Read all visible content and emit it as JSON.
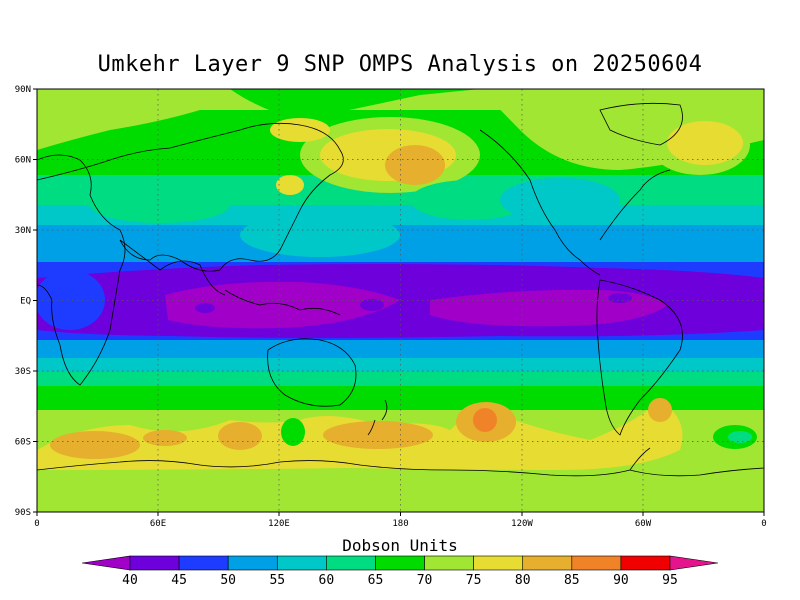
{
  "title": "Umkehr Layer 9 SNP OMPS Analysis on 20250604",
  "colorbar": {
    "title": "Dobson Units",
    "ticks": [
      "40",
      "45",
      "50",
      "55",
      "60",
      "65",
      "70",
      "75",
      "80",
      "85",
      "90",
      "95"
    ],
    "colors": [
      "#a000c8",
      "#6e00dc",
      "#1e3cff",
      "#00a0e6",
      "#00c8c8",
      "#00dc82",
      "#00dc00",
      "#a0e632",
      "#e6dc32",
      "#e6af2d",
      "#f08228",
      "#f00000",
      "#e6148c"
    ]
  },
  "axes": {
    "y_ticks": [
      "90N",
      "60N",
      "30N",
      "EQ",
      "30S",
      "60S",
      "90S"
    ],
    "x_ticks": [
      "0",
      "60E",
      "120E",
      "180",
      "120W",
      "60W",
      "0"
    ]
  },
  "chart_data": {
    "type": "heatmap",
    "title": "Umkehr Layer 9 SNP OMPS Analysis on 20250604",
    "xlabel": "",
    "ylabel": "",
    "units": "Dobson Units",
    "x_range": [
      0,
      360
    ],
    "y_range": [
      -90,
      90
    ],
    "grid": true,
    "levels": [
      40,
      45,
      50,
      55,
      60,
      65,
      70,
      75,
      80,
      85,
      90,
      95
    ],
    "zonal_profile": [
      {
        "lat": 90,
        "value": 73
      },
      {
        "lat": 75,
        "value": 71
      },
      {
        "lat": 60,
        "value": 70
      },
      {
        "lat": 45,
        "value": 66
      },
      {
        "lat": 30,
        "value": 57
      },
      {
        "lat": 15,
        "value": 49
      },
      {
        "lat": 0,
        "value": 43
      },
      {
        "lat": -15,
        "value": 49
      },
      {
        "lat": -30,
        "value": 58
      },
      {
        "lat": -45,
        "value": 70
      },
      {
        "lat": -60,
        "value": 77
      },
      {
        "lat": -75,
        "value": 74
      },
      {
        "lat": -90,
        "value": 73
      }
    ],
    "features": [
      {
        "lon": 120,
        "lat": 2,
        "value": 42
      },
      {
        "lon": 230,
        "lat": 0,
        "value": 43
      },
      {
        "lon": 150,
        "lat": 60,
        "value": 81
      },
      {
        "lon": 310,
        "lat": 65,
        "value": 77
      },
      {
        "lon": 40,
        "lat": -62,
        "value": 80
      },
      {
        "lon": 95,
        "lat": -60,
        "value": 80
      },
      {
        "lon": 165,
        "lat": -60,
        "value": 80
      },
      {
        "lon": 220,
        "lat": -55,
        "value": 83
      },
      {
        "lon": 295,
        "lat": -55,
        "value": 81
      },
      {
        "lon": 120,
        "lat": -60,
        "value": 69
      }
    ]
  }
}
